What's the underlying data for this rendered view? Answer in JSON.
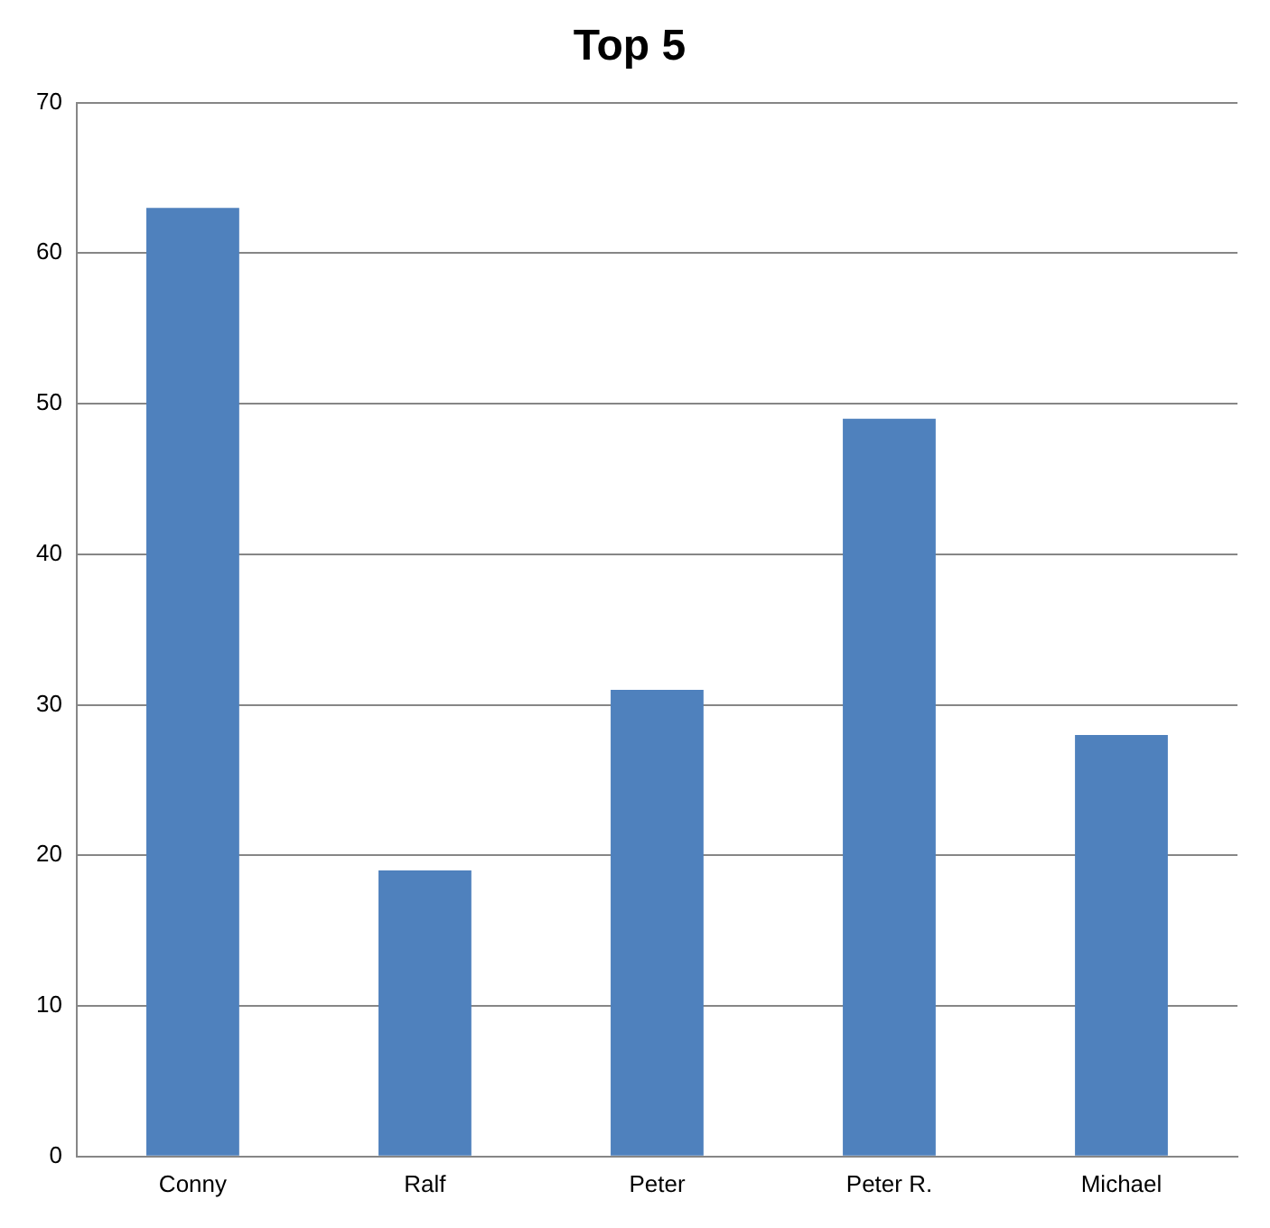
{
  "chart_data": {
    "type": "bar",
    "title": "Top 5",
    "categories": [
      "Conny",
      "Ralf",
      "Peter",
      "Peter R.",
      "Michael"
    ],
    "values": [
      63,
      19,
      31,
      49,
      28
    ],
    "color": "#4f81bd",
    "ylim": [
      0,
      70
    ],
    "yticks": [
      0,
      10,
      20,
      30,
      40,
      50,
      60,
      70
    ],
    "grid": "y",
    "legend": false
  }
}
